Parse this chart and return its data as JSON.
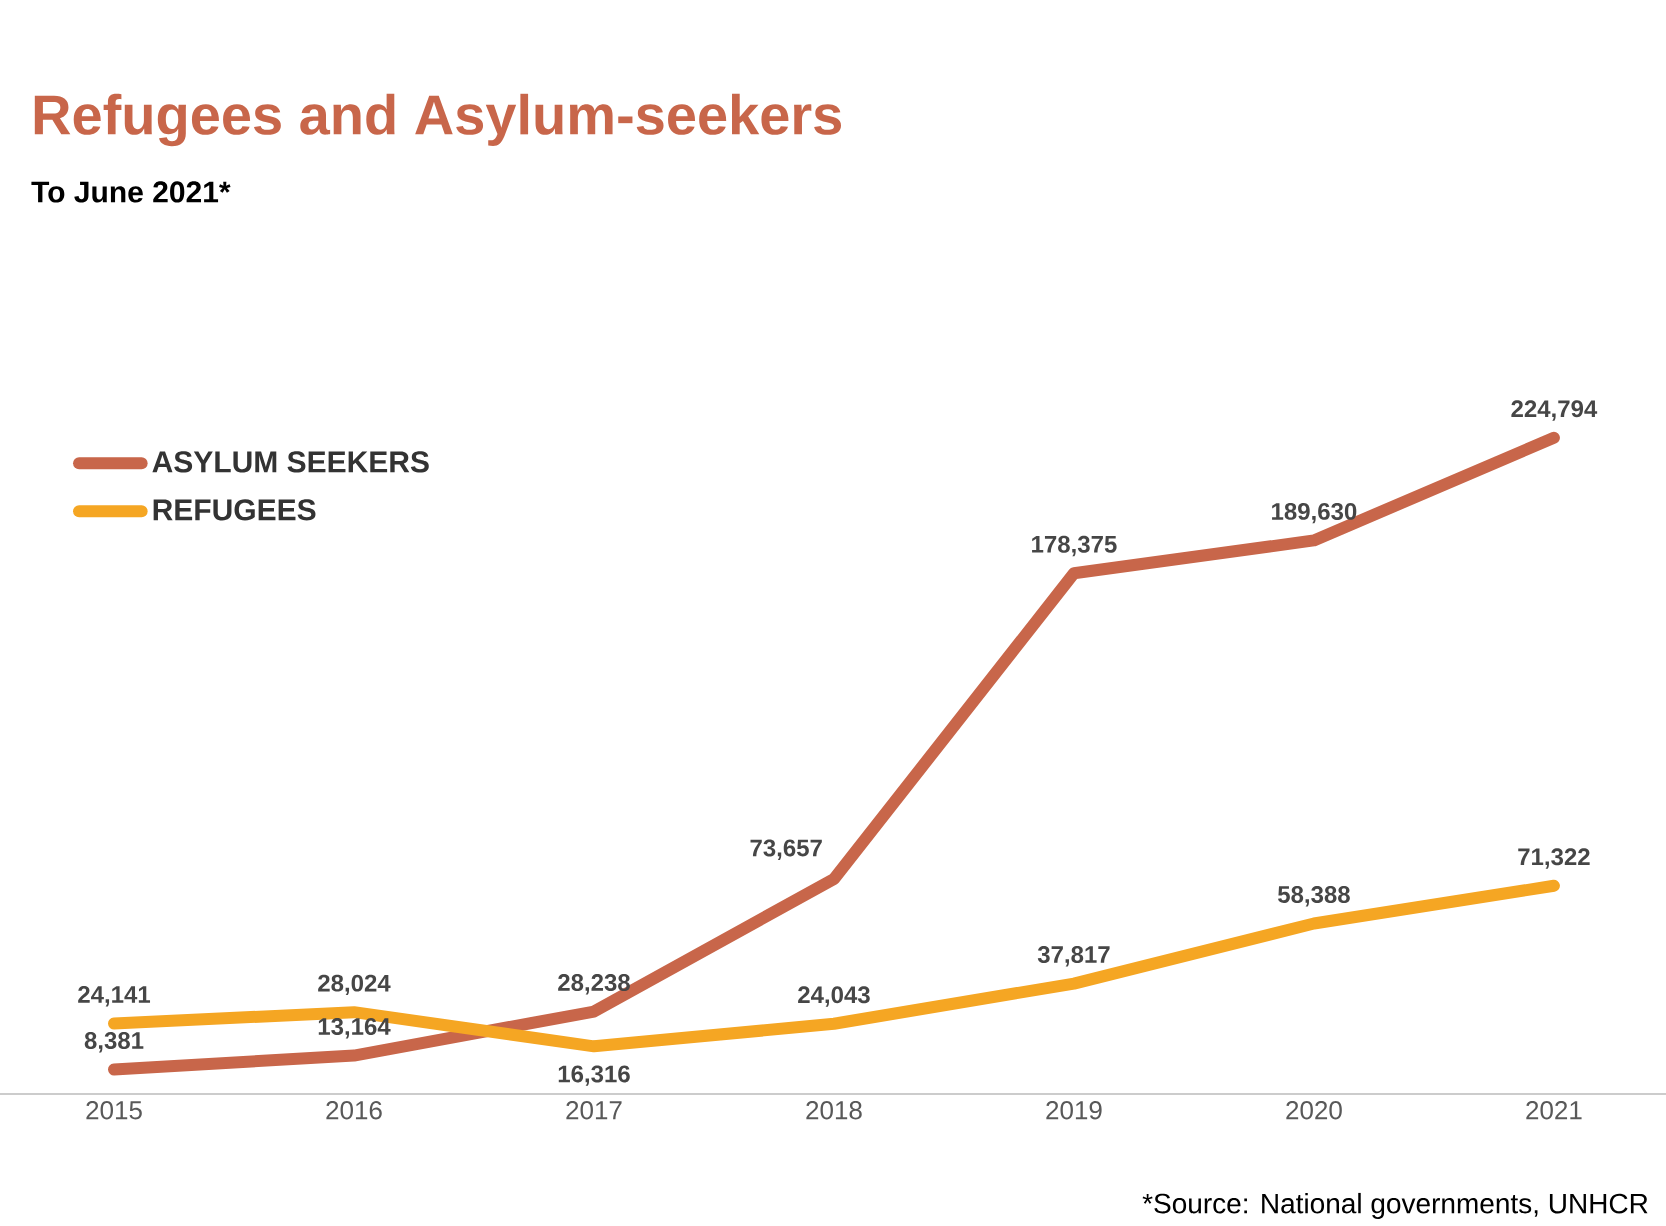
{
  "chart_data": {
    "type": "line",
    "title": "Refugees and Asylum-seekers",
    "subtitle": "To June 2021*",
    "categories": [
      "2015",
      "2016",
      "2017",
      "2018",
      "2019",
      "2020",
      "2021"
    ],
    "series": [
      {
        "name": "ASYLUM SEEKERS",
        "color": "#c8664a",
        "values": [
          8381,
          13164,
          28238,
          73657,
          178375,
          189630,
          224794
        ],
        "value_labels": [
          "8,381",
          "13,164",
          "28,238",
          "73,657",
          "178,375",
          "189,630",
          "224,794"
        ]
      },
      {
        "name": "REFUGEES",
        "color": "#f5a623",
        "values": [
          24141,
          28024,
          16316,
          24043,
          37817,
          58388,
          71322
        ],
        "value_labels": [
          "24,141",
          "28,024",
          "16,316",
          "24,043",
          "37,817",
          "58,388",
          "71,322"
        ]
      }
    ],
    "annotations": [
      "*Source: National governments, UNHCR"
    ],
    "legend": "top left",
    "tick_labels": "x",
    "grid": false
  }
}
